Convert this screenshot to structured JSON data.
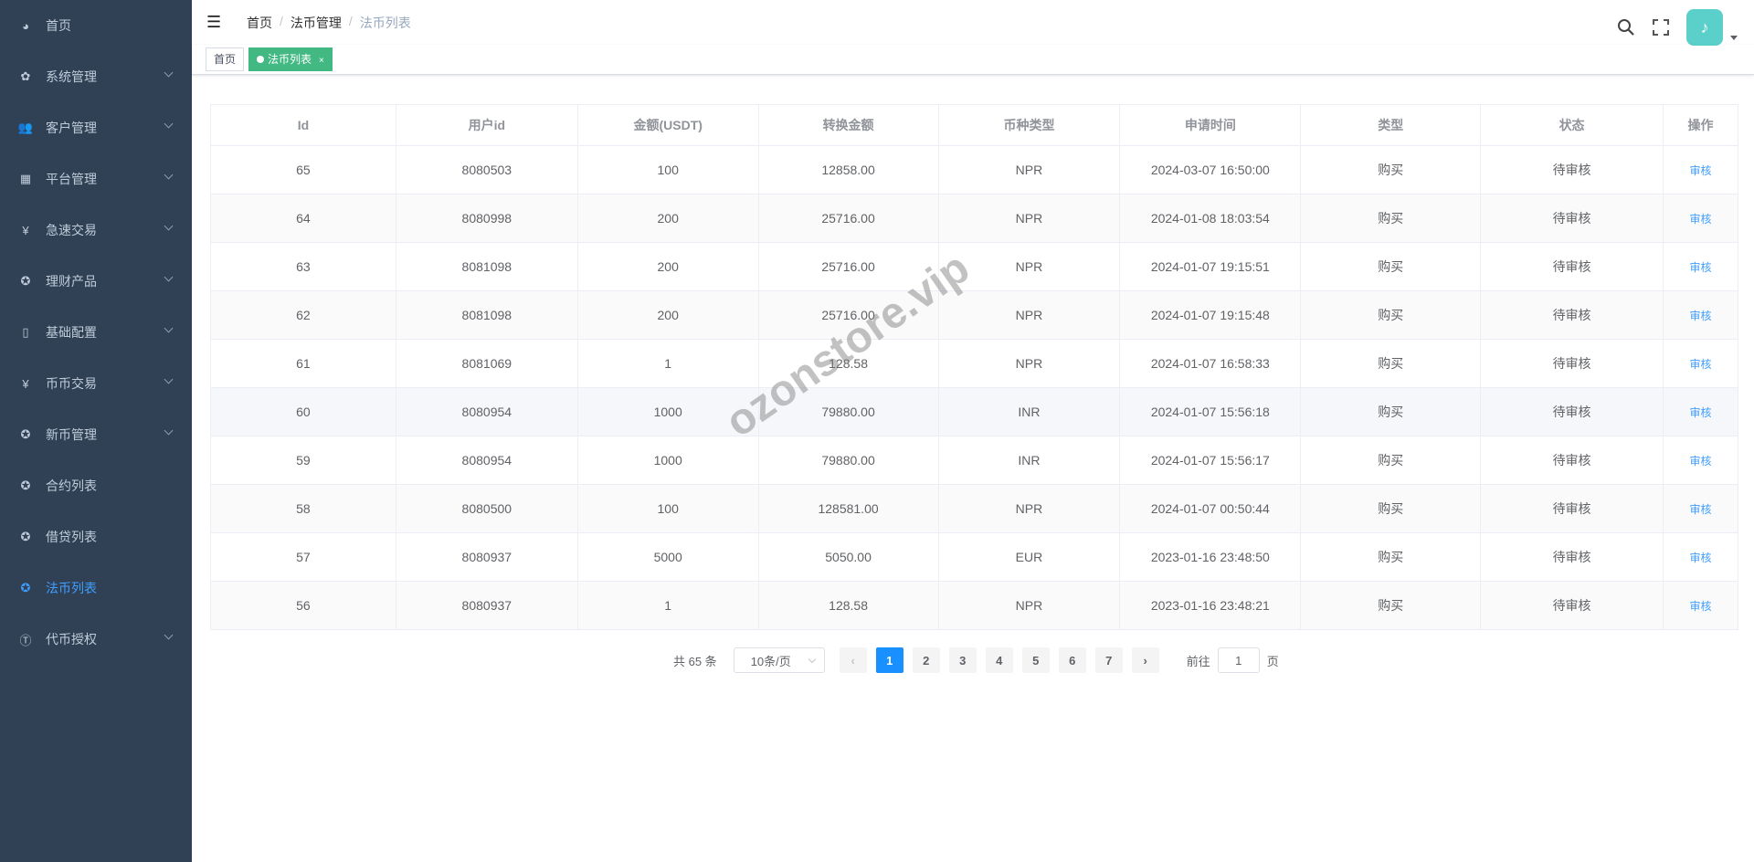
{
  "sidebar": {
    "items": [
      {
        "label": "首页",
        "icon": "dashboard-icon",
        "glyph": "◕",
        "has_children": false
      },
      {
        "label": "系统管理",
        "icon": "gear-icon",
        "glyph": "✿",
        "has_children": true
      },
      {
        "label": "客户管理",
        "icon": "users-icon",
        "glyph": "👥",
        "has_children": true
      },
      {
        "label": "平台管理",
        "icon": "grid-icon",
        "glyph": "▦",
        "has_children": true
      },
      {
        "label": "急速交易",
        "icon": "yen-icon",
        "glyph": "¥",
        "has_children": true
      },
      {
        "label": "理财产品",
        "icon": "circle-icon",
        "glyph": "✪",
        "has_children": true
      },
      {
        "label": "基础配置",
        "icon": "book-icon",
        "glyph": "▯",
        "has_children": true
      },
      {
        "label": "币币交易",
        "icon": "yen-icon",
        "glyph": "¥",
        "has_children": true
      },
      {
        "label": "新币管理",
        "icon": "circle-icon",
        "glyph": "✪",
        "has_children": true
      },
      {
        "label": "合约列表",
        "icon": "circle-icon",
        "glyph": "✪",
        "has_children": false
      },
      {
        "label": "借贷列表",
        "icon": "circle-icon",
        "glyph": "✪",
        "has_children": false
      },
      {
        "label": "法币列表",
        "icon": "circle-icon",
        "glyph": "✪",
        "has_children": false,
        "active": true
      },
      {
        "label": "代币授权",
        "icon": "token-icon",
        "glyph": "Ⓣ",
        "has_children": true
      }
    ]
  },
  "header": {
    "breadcrumb": [
      "首页",
      "法币管理",
      "法币列表"
    ],
    "separator": "/"
  },
  "tags": [
    {
      "label": "首页",
      "active": false
    },
    {
      "label": "法币列表",
      "active": true,
      "close": "×"
    }
  ],
  "table": {
    "columns": [
      "Id",
      "用户id",
      "金额(USDT)",
      "转换金额",
      "币种类型",
      "申请时间",
      "类型",
      "状态",
      "操作"
    ],
    "rows": [
      [
        "65",
        "8080503",
        "100",
        "12858.00",
        "NPR",
        "2024-03-07 16:50:00",
        "购买",
        "待审核",
        "审核"
      ],
      [
        "64",
        "8080998",
        "200",
        "25716.00",
        "NPR",
        "2024-01-08 18:03:54",
        "购买",
        "待审核",
        "审核"
      ],
      [
        "63",
        "8081098",
        "200",
        "25716.00",
        "NPR",
        "2024-01-07 19:15:51",
        "购买",
        "待审核",
        "审核"
      ],
      [
        "62",
        "8081098",
        "200",
        "25716.00",
        "NPR",
        "2024-01-07 19:15:48",
        "购买",
        "待审核",
        "审核"
      ],
      [
        "61",
        "8081069",
        "1",
        "128.58",
        "NPR",
        "2024-01-07 16:58:33",
        "购买",
        "待审核",
        "审核"
      ],
      [
        "60",
        "8080954",
        "1000",
        "79880.00",
        "INR",
        "2024-01-07 15:56:18",
        "购买",
        "待审核",
        "审核"
      ],
      [
        "59",
        "8080954",
        "1000",
        "79880.00",
        "INR",
        "2024-01-07 15:56:17",
        "购买",
        "待审核",
        "审核"
      ],
      [
        "58",
        "8080500",
        "100",
        "128581.00",
        "NPR",
        "2024-01-07 00:50:44",
        "购买",
        "待审核",
        "审核"
      ],
      [
        "57",
        "8080937",
        "5000",
        "5050.00",
        "EUR",
        "2023-01-16 23:48:50",
        "购买",
        "待审核",
        "审核"
      ],
      [
        "56",
        "8080937",
        "1",
        "128.58",
        "NPR",
        "2023-01-16 23:48:21",
        "购买",
        "待审核",
        "审核"
      ]
    ]
  },
  "pagination": {
    "total": "共 65 条",
    "page_size": "10条/页",
    "pages": [
      "1",
      "2",
      "3",
      "4",
      "5",
      "6",
      "7"
    ],
    "current": "1",
    "prev": "‹",
    "next": "›",
    "goto_label": "前往",
    "goto_value": "1",
    "goto_suffix": "页"
  },
  "watermark": "ozonstore.vip",
  "colors": {
    "sidebar_bg": "#304156",
    "active": "#409eff",
    "tag_active": "#42b983",
    "page_active": "#1890ff"
  }
}
